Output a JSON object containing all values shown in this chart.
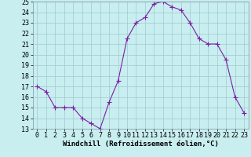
{
  "x": [
    0,
    1,
    2,
    3,
    4,
    5,
    6,
    7,
    8,
    9,
    10,
    11,
    12,
    13,
    14,
    15,
    16,
    17,
    18,
    19,
    20,
    21,
    22,
    23
  ],
  "y": [
    17,
    16.5,
    15,
    15,
    15,
    14,
    13.5,
    13,
    15.5,
    17.5,
    21.5,
    23,
    23.5,
    24.8,
    25,
    24.5,
    24.2,
    23,
    21.5,
    21,
    21,
    19.5,
    16,
    14.5
  ],
  "line_color": "#7b1fa2",
  "marker": "+",
  "marker_size": 4,
  "bg_color": "#c8eef0",
  "grid_color": "#a0c8d0",
  "xlabel": "Windchill (Refroidissement éolien,°C)",
  "xlabel_fontsize": 6.5,
  "tick_fontsize": 6,
  "ylim": [
    13,
    25
  ],
  "xlim": [
    -0.5,
    23.5
  ],
  "yticks": [
    13,
    14,
    15,
    16,
    17,
    18,
    19,
    20,
    21,
    22,
    23,
    24,
    25
  ],
  "xticks": [
    0,
    1,
    2,
    3,
    4,
    5,
    6,
    7,
    8,
    9,
    10,
    11,
    12,
    13,
    14,
    15,
    16,
    17,
    18,
    19,
    20,
    21,
    22,
    23
  ]
}
